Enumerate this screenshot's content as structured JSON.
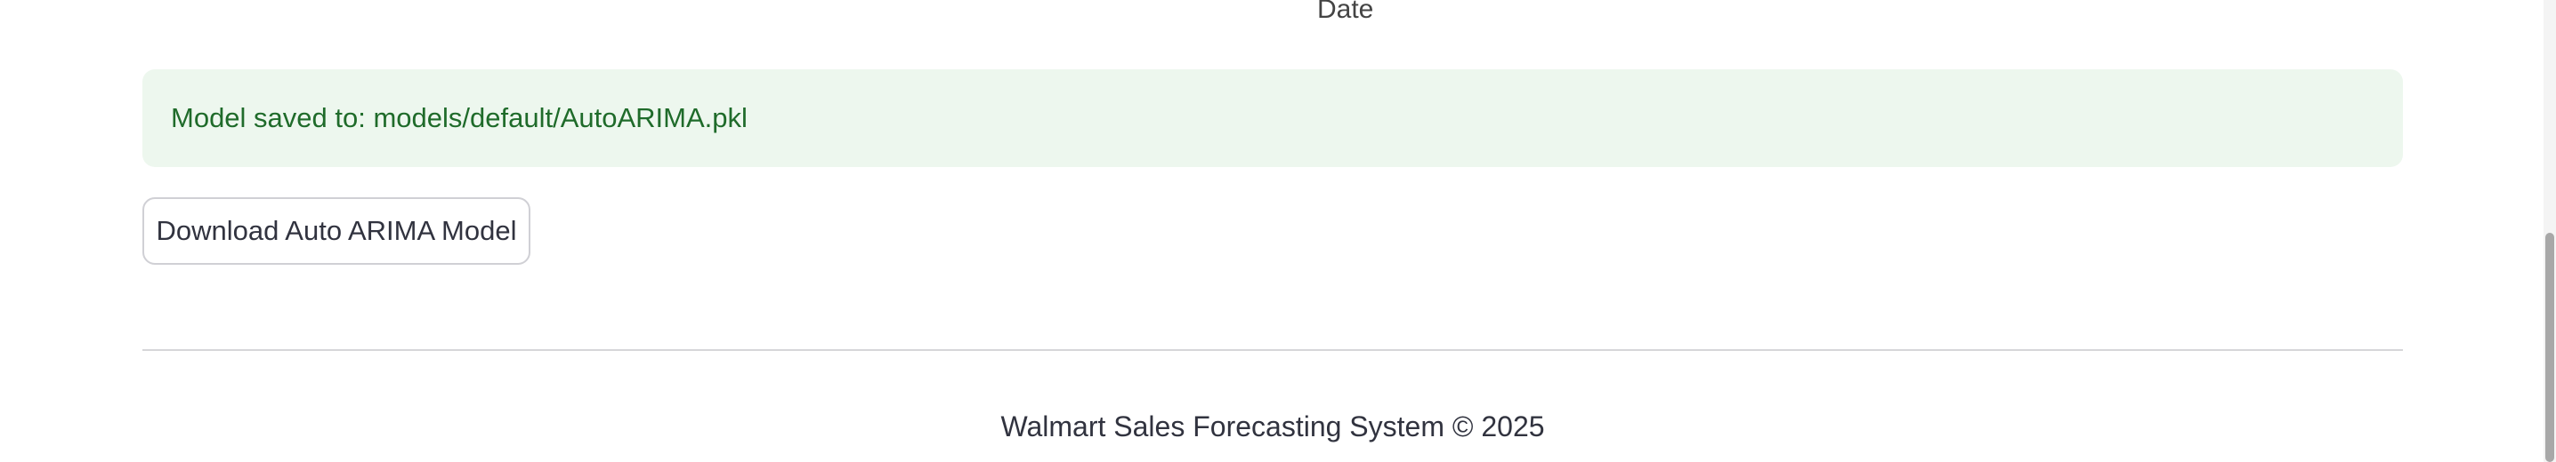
{
  "chart": {
    "xlabel": "Date"
  },
  "status": {
    "success_message": "Model saved to: models/default/AutoARIMA.pkl"
  },
  "actions": {
    "download_label": "Download Auto ARIMA Model"
  },
  "footer": {
    "text": "Walmart Sales Forecasting System © 2025"
  },
  "colors": {
    "success_bg": "#edf7ee",
    "success_text": "#1f6b2a"
  }
}
